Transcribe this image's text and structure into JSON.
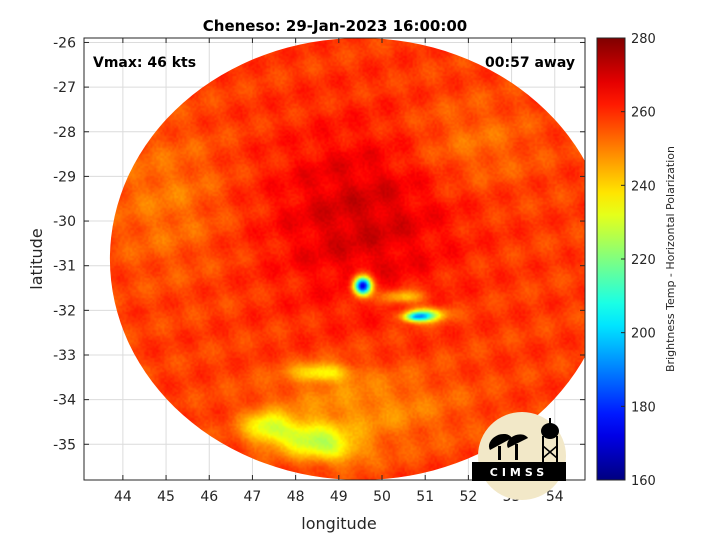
{
  "chart_data": {
    "type": "heatmap",
    "title": "Cheneso: 29-Jan-2023 16:00:00",
    "xlabel": "longitude",
    "ylabel": "latitude",
    "xlim": [
      43.1,
      54.7
    ],
    "ylim": [
      -35.8,
      -25.9
    ],
    "xticks": [
      44,
      45,
      46,
      47,
      48,
      49,
      50,
      51,
      52,
      53,
      54
    ],
    "yticks": [
      -26,
      -27,
      -28,
      -29,
      -30,
      -31,
      -32,
      -33,
      -34,
      -35
    ],
    "grid": true,
    "annotations": {
      "left": "Vmax: 46 kts",
      "right": "00:57 away"
    },
    "colorbar": {
      "label": "Brightness Temp - Horizontal Polarization",
      "range": [
        160,
        280
      ],
      "ticks": [
        160,
        180,
        200,
        220,
        240,
        260,
        280
      ],
      "colormap": "jet"
    },
    "swath": {
      "center": [
        49.5,
        -30.85
      ],
      "rx_deg": 5.8,
      "ry_deg": 4.95
    },
    "field": {
      "background_value": 258,
      "features": [
        {
          "lon": 49.5,
          "lat": -29.9,
          "sx": 2.2,
          "sy": 2.0,
          "delta": 12
        },
        {
          "lon": 45.0,
          "lat": -29.5,
          "sx": 1.4,
          "sy": 1.6,
          "delta": -7
        },
        {
          "lon": 52.0,
          "lat": -28.3,
          "sx": 1.5,
          "sy": 1.0,
          "delta": -7
        },
        {
          "lon": 49.5,
          "lat": -34.2,
          "sx": 2.2,
          "sy": 0.9,
          "delta": -10
        },
        {
          "lon": 48.2,
          "lat": -34.8,
          "sx": 0.9,
          "sy": 0.35,
          "delta": -22
        },
        {
          "lon": 47.3,
          "lat": -34.6,
          "sx": 0.5,
          "sy": 0.35,
          "delta": -20
        },
        {
          "lon": 48.8,
          "lat": -35.15,
          "sx": 0.8,
          "sy": 0.3,
          "delta": -18
        },
        {
          "lon": 48.6,
          "lat": -33.4,
          "sx": 0.65,
          "sy": 0.2,
          "delta": -22
        },
        {
          "lon": 50.5,
          "lat": -31.7,
          "sx": 0.5,
          "sy": 0.15,
          "delta": -20
        },
        {
          "lon": 51.0,
          "lat": -32.1,
          "sx": 0.45,
          "sy": 0.15,
          "delta": -38
        },
        {
          "lon": 49.55,
          "lat": -31.45,
          "sx": 0.2,
          "sy": 0.2,
          "delta": -95
        },
        {
          "lon": 50.8,
          "lat": -32.15,
          "sx": 0.3,
          "sy": 0.1,
          "delta": -40
        }
      ]
    }
  },
  "logo": {
    "text": "CIMSS"
  },
  "colors": {
    "background": "#ffffff",
    "grid": "#dcdcdc",
    "axis": "#262626"
  }
}
